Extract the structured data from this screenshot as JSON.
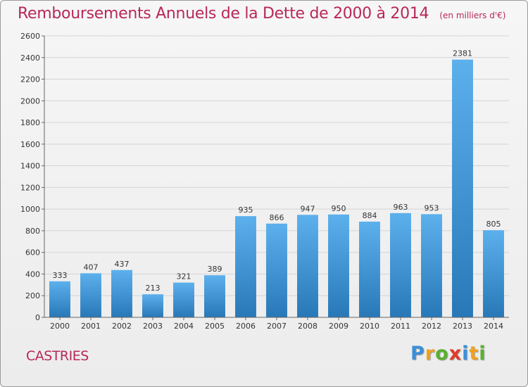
{
  "header": {
    "title": "Remboursements Annuels de la Dette de 2000 à 2014",
    "subtitle": "(en milliers d'€)"
  },
  "location": "CASTRIES",
  "brand": {
    "letters": [
      {
        "char": "P",
        "color": "#3a8fd8"
      },
      {
        "char": "r",
        "color": "#f0a21c"
      },
      {
        "char": "o",
        "color": "#5ab030"
      },
      {
        "char": "x",
        "color": "#e03a2a"
      },
      {
        "char": "i",
        "color": "#3a8fd8"
      },
      {
        "char": "t",
        "color": "#f0a21c"
      },
      {
        "char": "i",
        "color": "#5ab030"
      }
    ]
  },
  "colors": {
    "title": "#b8285a",
    "bar_top": "#5cb0ec",
    "bar_bottom": "#2878b8",
    "grid": "#d4d4d4",
    "axis": "#666666"
  },
  "chart_data": {
    "type": "bar",
    "title": "Remboursements Annuels de la Dette de 2000 à 2014",
    "subtitle": "(en milliers d'€)",
    "xlabel": "",
    "ylabel": "",
    "categories": [
      "2000",
      "2001",
      "2002",
      "2003",
      "2004",
      "2005",
      "2006",
      "2007",
      "2008",
      "2009",
      "2010",
      "2011",
      "2012",
      "2013",
      "2014"
    ],
    "values": [
      333,
      407,
      437,
      213,
      321,
      389,
      935,
      866,
      947,
      950,
      884,
      963,
      953,
      2381,
      805
    ],
    "ylim": [
      0,
      2600
    ],
    "yticks": [
      0,
      200,
      400,
      600,
      800,
      1000,
      1200,
      1400,
      1600,
      1800,
      2000,
      2200,
      2400,
      2600
    ],
    "grid": true,
    "data_labels": true
  }
}
